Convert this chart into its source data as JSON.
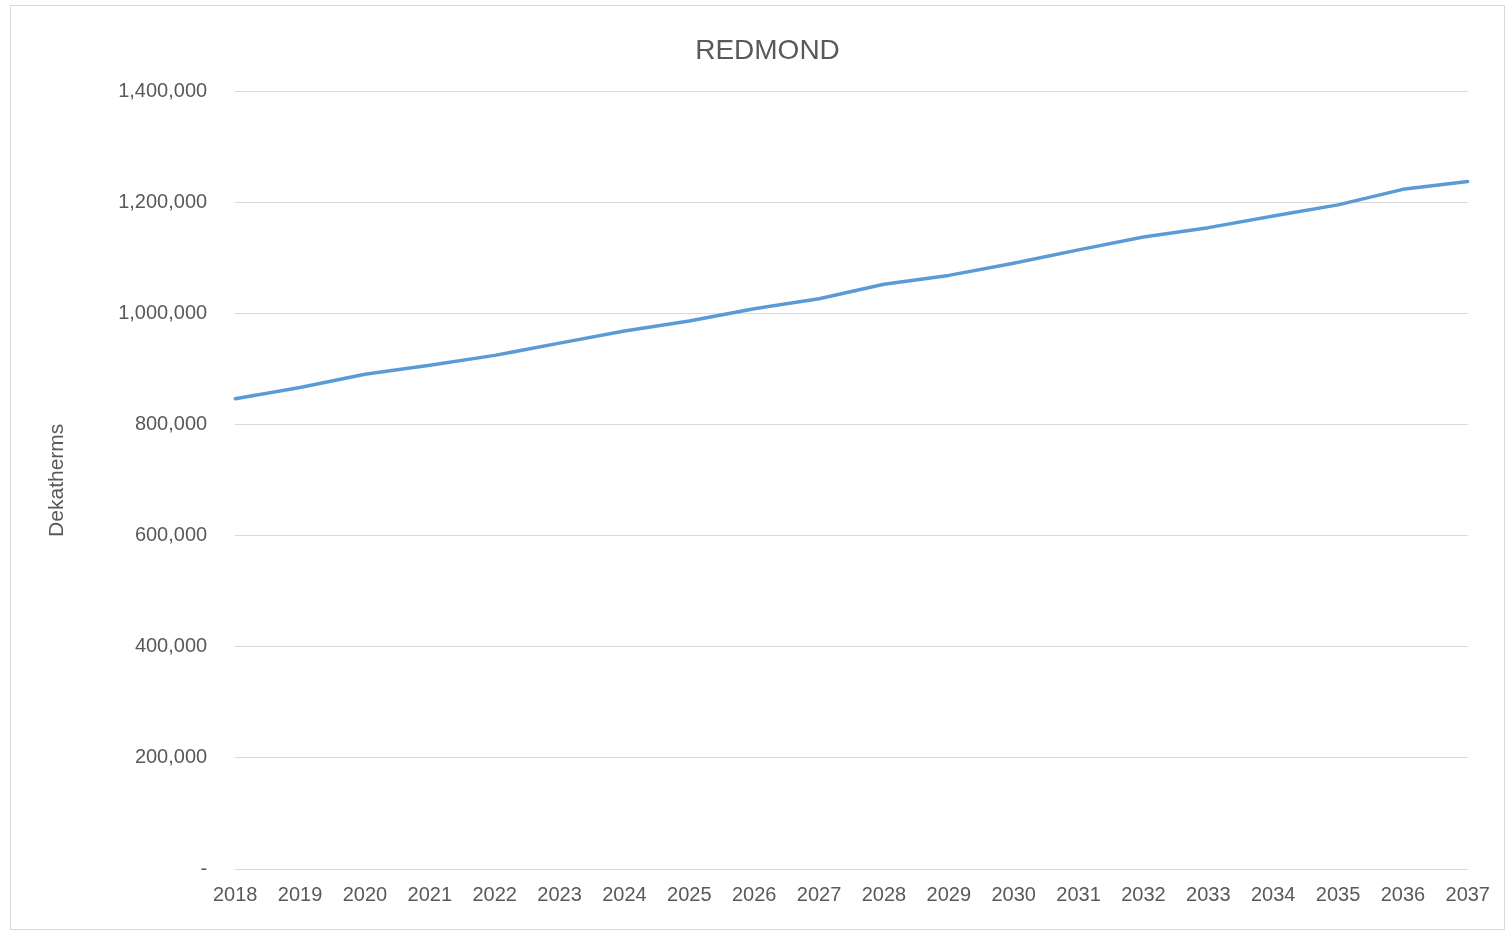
{
  "chart_data": {
    "type": "line",
    "title": "REDMOND",
    "ylabel": "Dekatherms",
    "categories": [
      "2018",
      "2019",
      "2020",
      "2021",
      "2022",
      "2023",
      "2024",
      "2025",
      "2026",
      "2027",
      "2028",
      "2029",
      "2030",
      "2031",
      "2032",
      "2033",
      "2034",
      "2035",
      "2036",
      "2037"
    ],
    "series": [
      {
        "color": "#5b9bd5",
        "values": [
          847000,
          867000,
          891000,
          907000,
          925000,
          947000,
          969000,
          987000,
          1009000,
          1027000,
          1053000,
          1069000,
          1091000,
          1115000,
          1138000,
          1155000,
          1176000,
          1196000,
          1224000,
          1238000
        ]
      }
    ],
    "ylim": [
      0,
      1400000
    ],
    "yticks": [
      {
        "value": 0,
        "label": "-"
      },
      {
        "value": 200000,
        "label": "200,000"
      },
      {
        "value": 400000,
        "label": "400,000"
      },
      {
        "value": 600000,
        "label": "600,000"
      },
      {
        "value": 800000,
        "label": "800,000"
      },
      {
        "value": 1000000,
        "label": "1,000,000"
      },
      {
        "value": 1200000,
        "label": "1,200,000"
      },
      {
        "value": 1400000,
        "label": "1,400,000"
      }
    ],
    "grid": "y",
    "legend": false,
    "marker": "none",
    "line_style": "solid"
  }
}
